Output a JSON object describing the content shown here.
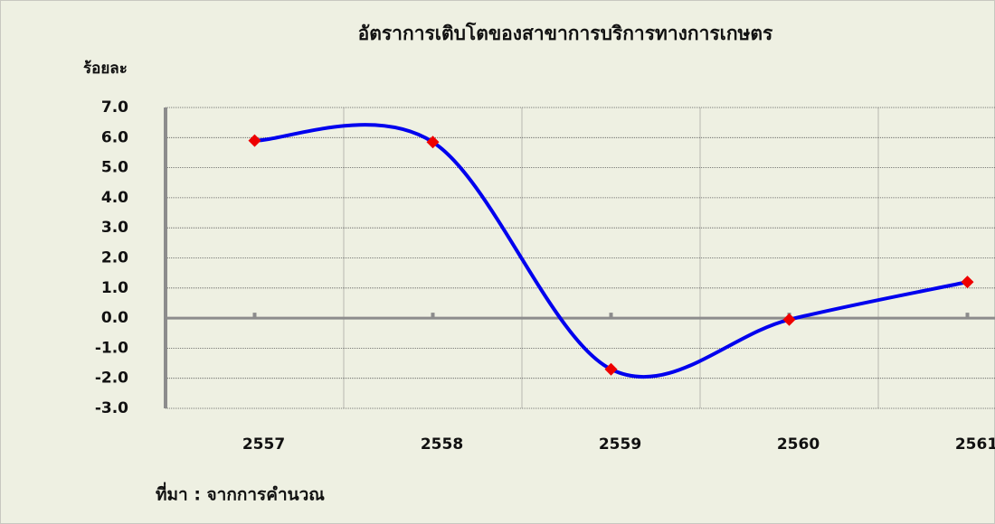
{
  "chart_data": {
    "type": "line",
    "title": "อัตราการเติบโตของสาขาการบริการทางการเกษตร",
    "y_label": "ร้อยละ",
    "source": "ที่มา : จากการคำนวณ",
    "categories": [
      "2557",
      "2558",
      "2559",
      "2560",
      "2561"
    ],
    "series": [
      {
        "name": "อัตราการเติบโต",
        "color": "#0000ee",
        "marker_color": "#ee0000",
        "values": [
          5.9,
          5.85,
          -1.7,
          -0.05,
          1.2
        ]
      }
    ],
    "ylim": [
      -3,
      7
    ],
    "yticks": [
      {
        "value": 7,
        "label": "7.0"
      },
      {
        "value": 6,
        "label": "6.0"
      },
      {
        "value": 5,
        "label": "5.0"
      },
      {
        "value": 4,
        "label": "4.0"
      },
      {
        "value": 3,
        "label": "3.0"
      },
      {
        "value": 2,
        "label": "2.0"
      },
      {
        "value": 1,
        "label": "1.0"
      },
      {
        "value": 0,
        "label": "0.0"
      },
      {
        "value": -1,
        "label": "-1.0"
      },
      {
        "value": -2,
        "label": "-2.0"
      },
      {
        "value": -3,
        "label": "-3.0"
      }
    ],
    "grid": true,
    "smooth": true
  }
}
